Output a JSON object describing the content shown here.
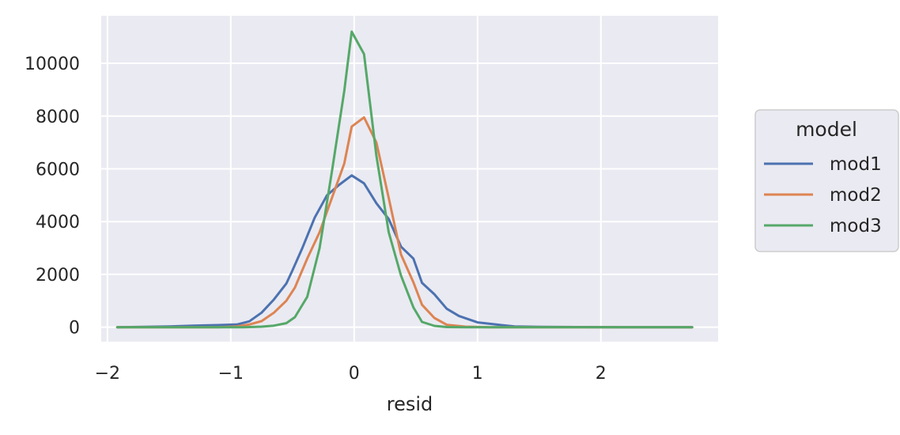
{
  "chart_data": {
    "type": "line",
    "xlabel": "resid",
    "ylabel": "",
    "xlim": [
      -2.05,
      2.95
    ],
    "ylim": [
      -550,
      11800
    ],
    "xticks": [
      -2,
      -1,
      0,
      1,
      2
    ],
    "xtick_labels": [
      "−2",
      "−1",
      "0",
      "1",
      "2"
    ],
    "yticks": [
      0,
      2000,
      4000,
      6000,
      8000,
      10000
    ],
    "ytick_labels": [
      "0",
      "2000",
      "4000",
      "6000",
      "8000",
      "10000"
    ],
    "grid": true,
    "background": "#EAEAF2",
    "legend": {
      "title": "model",
      "placement": "right-outside"
    },
    "series": [
      {
        "name": "mod1",
        "color": "#4C72B0",
        "x": [
          -1.92,
          -1.7,
          -1.5,
          -1.3,
          -1.1,
          -0.95,
          -0.85,
          -0.75,
          -0.65,
          -0.55,
          -0.5,
          -0.42,
          -0.32,
          -0.22,
          -0.12,
          -0.02,
          0.08,
          0.18,
          0.28,
          0.38,
          0.48,
          0.55,
          0.65,
          0.75,
          0.85,
          1.0,
          1.15,
          1.3,
          1.5,
          1.8,
          2.2,
          2.74
        ],
        "y": [
          0,
          10,
          30,
          60,
          80,
          100,
          220,
          550,
          1050,
          1650,
          2150,
          3000,
          4150,
          5000,
          5400,
          5750,
          5450,
          4700,
          4100,
          3050,
          2600,
          1680,
          1250,
          700,
          420,
          180,
          100,
          30,
          10,
          5,
          0,
          0
        ]
      },
      {
        "name": "mod2",
        "color": "#DD8452",
        "x": [
          -1.92,
          -1.5,
          -1.1,
          -0.95,
          -0.85,
          -0.75,
          -0.65,
          -0.55,
          -0.48,
          -0.38,
          -0.28,
          -0.18,
          -0.08,
          -0.02,
          0.08,
          0.18,
          0.28,
          0.38,
          0.48,
          0.55,
          0.65,
          0.75,
          0.9,
          1.1,
          1.5,
          2.0,
          2.74
        ],
        "y": [
          0,
          0,
          0,
          30,
          100,
          230,
          550,
          1000,
          1500,
          2600,
          3600,
          4900,
          6200,
          7600,
          7950,
          7000,
          4900,
          2750,
          1700,
          850,
          350,
          90,
          20,
          0,
          0,
          0,
          0
        ]
      },
      {
        "name": "mod3",
        "color": "#55A868",
        "x": [
          -1.92,
          -1.5,
          -1.1,
          -0.9,
          -0.75,
          -0.65,
          -0.55,
          -0.48,
          -0.38,
          -0.28,
          -0.18,
          -0.08,
          -0.02,
          0.08,
          0.18,
          0.28,
          0.38,
          0.48,
          0.55,
          0.65,
          0.75,
          0.9,
          1.2,
          1.6,
          2.0,
          2.74
        ],
        "y": [
          0,
          0,
          0,
          0,
          20,
          60,
          150,
          380,
          1150,
          3000,
          5900,
          8950,
          11200,
          10350,
          6500,
          3600,
          1950,
          750,
          200,
          50,
          5,
          0,
          0,
          0,
          0,
          0
        ]
      }
    ]
  }
}
